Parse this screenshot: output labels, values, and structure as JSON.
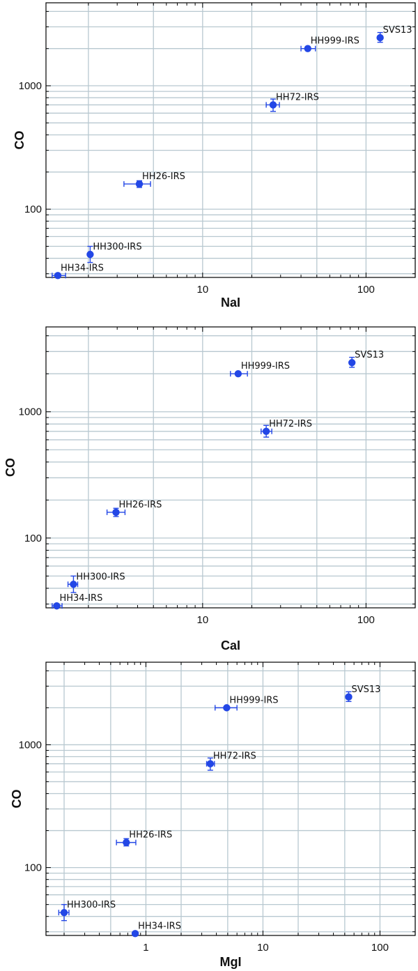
{
  "chart_data": [
    {
      "type": "scatter",
      "xlabel": "NaI",
      "ylabel": "CO",
      "x_scale": "log",
      "y_scale": "log",
      "xlim": [
        1.1,
        200
      ],
      "ylim": [
        28,
        4700
      ],
      "xticks": [
        {
          "v": 10,
          "label": "10"
        },
        {
          "v": 100,
          "label": "100"
        }
      ],
      "yticks": [
        {
          "v": 100,
          "label": "100"
        },
        {
          "v": 1000,
          "label": "1000"
        }
      ],
      "grid": true,
      "points": [
        {
          "label": "SVS13",
          "x": 122,
          "y": 2450,
          "xerr": [
            0,
            0
          ],
          "yerr": [
            2250,
            2700
          ]
        },
        {
          "label": "HH999-IRS",
          "x": 44,
          "y": 2000,
          "xerr": [
            40,
            49
          ],
          "yerr": [
            2000,
            2000
          ]
        },
        {
          "label": "HH72-IRS",
          "x": 27,
          "y": 700,
          "xerr": [
            24.5,
            29.5
          ],
          "yerr": [
            620,
            780
          ]
        },
        {
          "label": "HH26-IRS",
          "x": 4.1,
          "y": 160,
          "xerr": [
            3.3,
            4.8
          ],
          "yerr": [
            150,
            170
          ]
        },
        {
          "label": "HH300-IRS",
          "x": 2.05,
          "y": 43,
          "xerr": [
            2.0,
            2.1
          ],
          "yerr": [
            37,
            50
          ]
        },
        {
          "label": "HH34-IRS",
          "x": 1.3,
          "y": 29,
          "xerr": [
            1.2,
            1.45
          ],
          "yerr": [
            28,
            30
          ]
        }
      ]
    },
    {
      "type": "scatter",
      "xlabel": "CaI",
      "ylabel": "CO",
      "x_scale": "log",
      "y_scale": "log",
      "xlim": [
        1.1,
        200
      ],
      "ylim": [
        28,
        4700
      ],
      "xticks": [
        {
          "v": 10,
          "label": "10"
        },
        {
          "v": 100,
          "label": "100"
        }
      ],
      "yticks": [
        {
          "v": 100,
          "label": "100"
        },
        {
          "v": 1000,
          "label": "1000"
        }
      ],
      "grid": true,
      "points": [
        {
          "label": "SVS13",
          "x": 82,
          "y": 2450,
          "xerr": [
            0,
            0
          ],
          "yerr": [
            2250,
            2700
          ]
        },
        {
          "label": "HH999-IRS",
          "x": 16.5,
          "y": 2000,
          "xerr": [
            14.8,
            18.8
          ],
          "yerr": [
            2000,
            2000
          ]
        },
        {
          "label": "HH72-IRS",
          "x": 24.5,
          "y": 700,
          "xerr": [
            22.8,
            26.5
          ],
          "yerr": [
            630,
            780
          ]
        },
        {
          "label": "HH26-IRS",
          "x": 2.95,
          "y": 160,
          "xerr": [
            2.6,
            3.35
          ],
          "yerr": [
            148,
            172
          ]
        },
        {
          "label": "HH300-IRS",
          "x": 1.62,
          "y": 43,
          "xerr": [
            1.5,
            1.72
          ],
          "yerr": [
            37,
            50
          ]
        },
        {
          "label": "HH34-IRS",
          "x": 1.28,
          "y": 29,
          "xerr": [
            1.2,
            1.38
          ],
          "yerr": [
            28,
            30
          ]
        }
      ]
    },
    {
      "type": "scatter",
      "xlabel": "MgI",
      "ylabel": "CO",
      "x_scale": "log",
      "y_scale": "log",
      "xlim": [
        0.14,
        200
      ],
      "ylim": [
        28,
        4700
      ],
      "xticks": [
        {
          "v": 1,
          "label": "1"
        },
        {
          "v": 10,
          "label": "10"
        },
        {
          "v": 100,
          "label": "100"
        }
      ],
      "yticks": [
        {
          "v": 100,
          "label": "100"
        },
        {
          "v": 1000,
          "label": "1000"
        }
      ],
      "grid": true,
      "points": [
        {
          "label": "SVS13",
          "x": 54,
          "y": 2450,
          "xerr": [
            0,
            0
          ],
          "yerr": [
            2250,
            2700
          ]
        },
        {
          "label": "HH999-IRS",
          "x": 4.9,
          "y": 2000,
          "xerr": [
            3.9,
            6.0
          ],
          "yerr": [
            2000,
            2000
          ]
        },
        {
          "label": "HH72-IRS",
          "x": 3.55,
          "y": 700,
          "xerr": [
            3.3,
            3.85
          ],
          "yerr": [
            620,
            780
          ]
        },
        {
          "label": "HH26-IRS",
          "x": 0.68,
          "y": 160,
          "xerr": [
            0.56,
            0.82
          ],
          "yerr": [
            150,
            172
          ]
        },
        {
          "label": "HH300-IRS",
          "x": 0.2,
          "y": 43,
          "xerr": [
            0.18,
            0.22
          ],
          "yerr": [
            37,
            50
          ]
        },
        {
          "label": "HH34-IRS",
          "x": 0.81,
          "y": 29,
          "xerr": [
            0.81,
            0.81
          ],
          "yerr": [
            28,
            30
          ]
        }
      ]
    }
  ],
  "colors": {
    "marker": "#2347e6",
    "grid": "#b8c8d0",
    "axis": "#000000"
  }
}
